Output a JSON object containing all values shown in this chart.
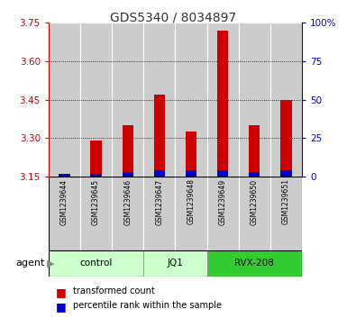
{
  "title": "GDS5340 / 8034897",
  "samples": [
    "GSM1239644",
    "GSM1239645",
    "GSM1239646",
    "GSM1239647",
    "GSM1239648",
    "GSM1239649",
    "GSM1239650",
    "GSM1239651"
  ],
  "transformed_counts": [
    3.16,
    3.29,
    3.35,
    3.47,
    3.325,
    3.72,
    3.35,
    3.45
  ],
  "percentile_ranks": [
    2,
    2,
    3,
    4,
    4,
    4,
    3,
    4
  ],
  "ylim_left": [
    3.15,
    3.75
  ],
  "yticks_left": [
    3.15,
    3.3,
    3.45,
    3.6,
    3.75
  ],
  "ylim_right": [
    0,
    100
  ],
  "yticks_right": [
    0,
    25,
    50,
    75,
    100
  ],
  "group_info": [
    {
      "name": "control",
      "start": 0,
      "end": 2,
      "color": "#ccffcc"
    },
    {
      "name": "JQ1",
      "start": 3,
      "end": 4,
      "color": "#ccffcc"
    },
    {
      "name": "RVX-208",
      "start": 5,
      "end": 7,
      "color": "#33cc33"
    }
  ],
  "agent_label": "agent",
  "legend_red": "transformed count",
  "legend_blue": "percentile rank within the sample",
  "bar_color_red": "#cc0000",
  "bar_color_blue": "#0000cc",
  "background_plot": "#ffffff",
  "background_sample": "#cccccc",
  "title_color": "#333333",
  "left_axis_color": "#cc0000",
  "right_axis_color": "#0000cc"
}
